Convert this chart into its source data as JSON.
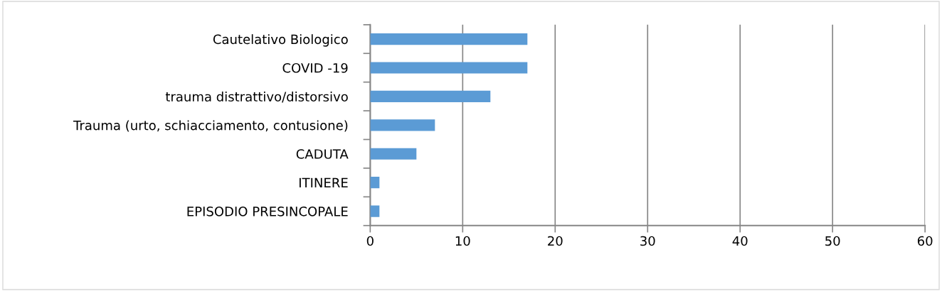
{
  "chart_data": {
    "type": "bar",
    "orientation": "horizontal",
    "categories": [
      "Cautelativo Biologico",
      "COVID -19",
      "trauma distrattivo/distorsivo",
      "Trauma (urto, schiacciamento, contusione)",
      "CADUTA",
      "ITINERE",
      "EPISODIO PRESINCOPALE"
    ],
    "values": [
      17,
      17,
      13,
      7,
      5,
      1,
      1
    ],
    "color": "#5b9bd5",
    "xlim": [
      0,
      60
    ],
    "xticks": [
      0,
      10,
      20,
      30,
      40,
      50,
      60
    ],
    "grid": "x",
    "legend": false
  }
}
